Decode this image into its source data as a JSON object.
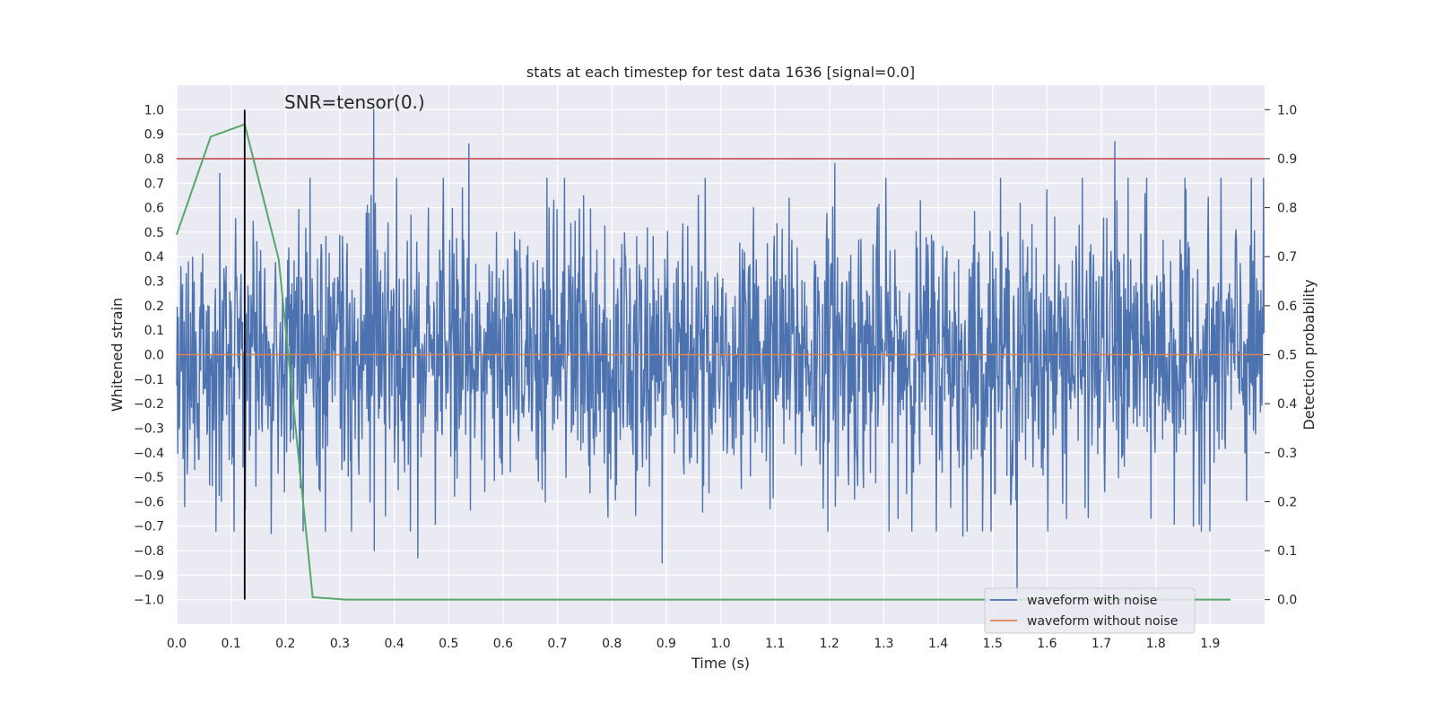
{
  "chart_data": {
    "type": "line",
    "title": "stats at each timestep for test data 1636 [signal=0.0]",
    "annotation": "SNR=tensor(0.)",
    "xlabel": "Time (s)",
    "ylabel_left": "Whitened strain",
    "ylabel_right": "Detection probability",
    "xlim": [
      0.0,
      2.0
    ],
    "ylim_left": [
      -1.1,
      1.1
    ],
    "ylim_right": [
      -0.05,
      1.05
    ],
    "xticks": [
      0.0,
      0.1,
      0.2,
      0.3,
      0.4,
      0.5,
      0.6,
      0.7,
      0.8,
      0.9,
      1.0,
      1.1,
      1.2,
      1.3,
      1.4,
      1.5,
      1.6,
      1.7,
      1.8,
      1.9
    ],
    "xtick_labels": [
      "0.0",
      "0.1",
      "0.2",
      "0.3",
      "0.4",
      "0.5",
      "0.6",
      "0.7",
      "0.8",
      "0.9",
      "1.0",
      "1.1",
      "1.2",
      "1.3",
      "1.4",
      "1.5",
      "1.6",
      "1.7",
      "1.8",
      "1.9"
    ],
    "yticks_left": [
      -1.0,
      -0.9,
      -0.8,
      -0.7,
      -0.6,
      -0.5,
      -0.4,
      -0.3,
      -0.2,
      -0.1,
      0.0,
      0.1,
      0.2,
      0.3,
      0.4,
      0.5,
      0.6,
      0.7,
      0.8,
      0.9,
      1.0
    ],
    "ytick_labels_left": [
      "−1.0",
      "−0.9",
      "−0.8",
      "−0.7",
      "−0.6",
      "−0.5",
      "−0.4",
      "−0.3",
      "−0.2",
      "−0.1",
      "0.0",
      "0.1",
      "0.2",
      "0.3",
      "0.4",
      "0.5",
      "0.6",
      "0.7",
      "0.8",
      "0.9",
      "1.0"
    ],
    "yticks_right": [
      0.0,
      0.1,
      0.2,
      0.3,
      0.4,
      0.5,
      0.6,
      0.7,
      0.8,
      0.9,
      1.0
    ],
    "ytick_labels_right": [
      "0.0",
      "0.1",
      "0.2",
      "0.3",
      "0.4",
      "0.5",
      "0.6",
      "0.7",
      "0.8",
      "0.9",
      "1.0"
    ],
    "grid": true,
    "legend_position": "lower-right",
    "series": [
      {
        "name": "waveform with noise",
        "axis": "left",
        "color": "#4c72b0",
        "kind": "noise",
        "n_samples": 2048,
        "amplitude_std": 0.28,
        "notable_peaks": [
          [
            0.362,
            1.0
          ],
          [
            0.537,
            0.86
          ],
          [
            1.725,
            0.87
          ],
          [
            1.21,
            0.78
          ],
          [
            0.079,
            0.74
          ],
          [
            1.545,
            -0.98
          ],
          [
            0.893,
            -0.85
          ],
          [
            0.443,
            -0.83
          ],
          [
            0.363,
            -0.8
          ],
          [
            0.174,
            -0.73
          ],
          [
            1.445,
            -0.74
          ],
          [
            0.015,
            -0.62
          ]
        ]
      },
      {
        "name": "waveform without noise",
        "axis": "left",
        "color": "#dd8452",
        "x": [
          0.0,
          2.0
        ],
        "y": [
          0.0,
          0.0
        ]
      },
      {
        "axis": "right",
        "color": "#55a868",
        "x": [
          0.0,
          0.0625,
          0.125,
          0.1875,
          0.25,
          0.3125,
          0.375,
          0.4375,
          0.5,
          0.5625,
          0.625,
          0.6875,
          0.75,
          0.8125,
          0.875,
          0.9375,
          1.0,
          1.0625,
          1.125,
          1.1875,
          1.25,
          1.3125,
          1.375,
          1.4375,
          1.5,
          1.5625,
          1.625,
          1.6875,
          1.75,
          1.8125,
          1.875,
          1.9375
        ],
        "y": [
          0.745,
          0.945,
          0.97,
          0.695,
          0.005,
          0.0,
          0.0,
          0.0,
          0.0,
          0.0,
          0.0,
          0.0,
          0.0,
          0.0,
          0.0,
          0.0,
          0.0,
          0.0,
          0.0,
          0.0,
          0.0,
          0.0,
          0.0,
          0.0,
          0.0,
          0.0,
          0.0,
          0.0,
          0.0,
          0.0,
          0.0,
          0.0
        ]
      }
    ],
    "threshold_line": {
      "axis": "right",
      "y": 0.9,
      "color": "#c44e52"
    },
    "vertical_marker": {
      "x": 0.125,
      "y_range": [
        -1.0,
        1.0
      ],
      "color": "#000000"
    },
    "colors": {
      "background": "#eaeaf2",
      "grid": "#ffffff"
    }
  }
}
